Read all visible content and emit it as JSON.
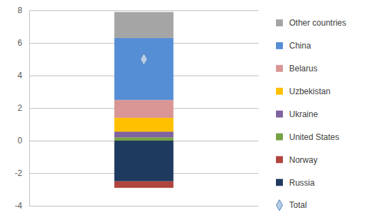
{
  "chart_data": {
    "type": "bar",
    "stacked": true,
    "grid": true,
    "legend": "right",
    "tick_labels": "y",
    "categories": [
      null
    ],
    "ylim": [
      -4,
      8
    ],
    "yticks": [
      -4,
      -2,
      0,
      2,
      4,
      6,
      8
    ],
    "series": [
      {
        "name": "Russia",
        "color": "#1f3a5f",
        "values": [
          -2.5
        ]
      },
      {
        "name": "Norway",
        "color": "#b0443f",
        "values": [
          -0.4
        ]
      },
      {
        "name": "United States",
        "color": "#77a244",
        "values": [
          0.2
        ]
      },
      {
        "name": "Ukraine",
        "color": "#7f62a0",
        "values": [
          0.35
        ]
      },
      {
        "name": "Uzbekistan",
        "color": "#ffc000",
        "values": [
          0.85
        ]
      },
      {
        "name": "Belarus",
        "color": "#d99694",
        "values": [
          1.1
        ]
      },
      {
        "name": "China",
        "color": "#558ed5",
        "values": [
          3.8
        ]
      },
      {
        "name": "Other countries",
        "color": "#a5a5a5",
        "values": [
          1.6
        ]
      },
      {
        "name": "Total",
        "type": "scatter",
        "marker": "diamond",
        "color": "#b9cde5",
        "values": [
          5.0
        ]
      }
    ]
  }
}
